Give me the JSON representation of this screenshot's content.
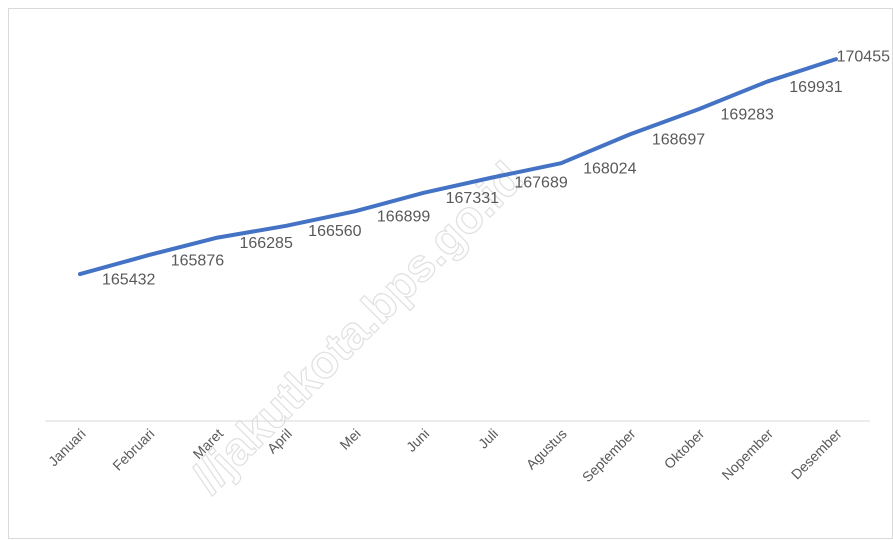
{
  "chart_data": {
    "type": "line",
    "categories": [
      "Januari",
      "Februari",
      "Maret",
      "April",
      "Mei",
      "Juni",
      "Juli",
      "Agustus",
      "September",
      "Oktober",
      "Nopember",
      "Desember"
    ],
    "values": [
      165432,
      165876,
      166285,
      166560,
      166899,
      167331,
      167689,
      168024,
      168697,
      169283,
      169931,
      170455
    ],
    "color": "#4472c4",
    "ylim": [
      162000,
      171000
    ],
    "watermark": "//jakutkota.bps.go.id"
  }
}
